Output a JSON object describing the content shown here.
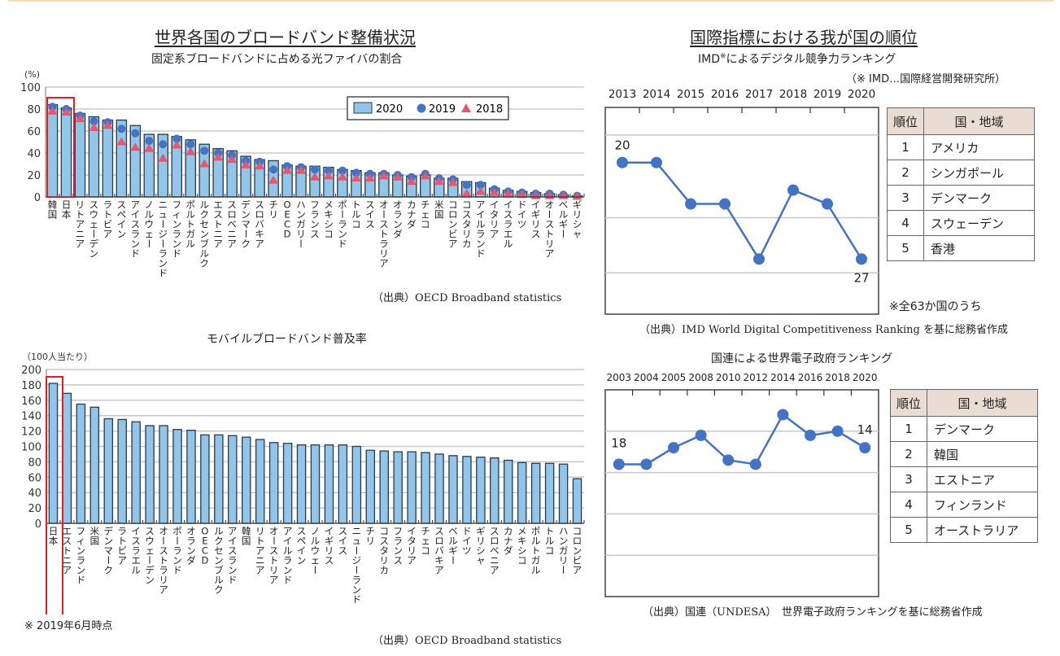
{
  "left": {
    "main_title": "世界各国のブロードバンド整備状況",
    "fiber": {
      "subtitle": "固定系ブロードバンドに占める光ファイバの割合",
      "unit": "(%)",
      "source": "（出典）OECD Broadband statistics"
    },
    "mobile": {
      "subtitle": "モバイルブロードバンド普及率",
      "unit": "（100人当たり）",
      "note": "※ 2019年6月時点",
      "source": "（出典）OECD Broadband statistics"
    }
  },
  "right": {
    "main_title": "国際指標における我が国の順位",
    "imd": {
      "subtitle": "IMD",
      "subtitle_mark": "※",
      "subtitle_rest": "によるデジタル競争力ランキング",
      "note_abbr": "（※ IMD…国際経営開発研究所）",
      "table_headers": [
        "順位",
        "国・地域"
      ],
      "table_rows": [
        {
          "rank": "1",
          "country": "アメリカ"
        },
        {
          "rank": "2",
          "country": "シンガポール"
        },
        {
          "rank": "3",
          "country": "デンマーク"
        },
        {
          "rank": "4",
          "country": "スウェーデン"
        },
        {
          "rank": "5",
          "country": "香港"
        }
      ],
      "footnote": "※全63か国のうち",
      "source": "（出典）IMD World Digital Competitiveness Ranking を基に総務省作成"
    },
    "un": {
      "subtitle": "国連による世界電子政府ランキング",
      "table_headers": [
        "順位",
        "国・地域"
      ],
      "table_rows": [
        {
          "rank": "1",
          "country": "デンマーク"
        },
        {
          "rank": "2",
          "country": "韓国"
        },
        {
          "rank": "3",
          "country": "エストニア"
        },
        {
          "rank": "4",
          "country": "フィンランド"
        },
        {
          "rank": "5",
          "country": "オーストラリア"
        }
      ],
      "source": "（出典）国連（UNDESA）　世界電子政府ランキングを基に総務省作成"
    }
  },
  "colors": {
    "bar": "#92c5ea",
    "bar_stroke": "#2a3a48",
    "series_2019": "#4472c4",
    "series_2018": "#e8566f",
    "highlight": "#e02020",
    "grid": "#c8c8c8",
    "table_header_bg": "#e8dcd3"
  },
  "chart_data": [
    {
      "id": "fiber",
      "type": "bar",
      "title": "固定系ブロードバンドに占める光ファイバの割合",
      "ylabel": "(%)",
      "ylim": [
        0,
        100
      ],
      "yticks": [
        0,
        20,
        40,
        60,
        80,
        100
      ],
      "grid": true,
      "legend": "top-right",
      "highlight": "日本",
      "categories": [
        "韓国",
        "日本",
        "リトアニア",
        "スウェーデン",
        "ラトビア",
        "スペイン",
        "アイスランド",
        "ノルウェー",
        "ニュージーランド",
        "フィンランド",
        "ポルトガル",
        "ルクセンブルク",
        "エストニア",
        "スロベニア",
        "デンマーク",
        "スロバキア",
        "チリ",
        "OECD",
        "ハンガリー",
        "フランス",
        "メキシコ",
        "ポーランド",
        "トルコ",
        "スイス",
        "オーストラリア",
        "オランダ",
        "カナダ",
        "チェコ",
        "米国",
        "コロンビア",
        "コスタリカ",
        "アイルランド",
        "イタリア",
        "イスラエル",
        "ドイツ",
        "イギリス",
        "オーストリア",
        "ベルギー",
        "ギリシャ"
      ],
      "series": [
        {
          "name": "2020",
          "kind": "bar",
          "values": [
            84,
            81,
            76,
            73,
            70,
            70,
            65,
            57,
            57,
            55,
            52,
            48,
            44,
            42,
            37,
            34,
            33,
            29,
            28,
            28,
            27,
            25,
            24,
            22,
            22,
            20,
            19,
            20,
            17,
            17,
            14,
            13,
            8,
            6,
            5,
            4,
            3,
            2,
            1
          ]
        },
        {
          "name": "2019",
          "kind": "dot",
          "values": [
            82,
            80,
            74,
            69,
            68,
            62,
            58,
            51,
            48,
            53,
            48,
            42,
            40,
            38,
            33,
            32,
            25,
            28,
            27,
            25,
            24,
            24,
            22,
            21,
            21,
            20,
            18,
            21,
            17,
            16,
            11,
            11,
            7,
            5,
            4,
            3,
            3,
            2,
            1
          ]
        },
        {
          "name": "2018",
          "kind": "triangle",
          "values": [
            78,
            77,
            71,
            63,
            65,
            50,
            45,
            44,
            35,
            47,
            41,
            30,
            36,
            34,
            29,
            28,
            15,
            24,
            24,
            18,
            19,
            18,
            17,
            17,
            19,
            18,
            14,
            19,
            14,
            13,
            3,
            5,
            4,
            3,
            2,
            1,
            1,
            1,
            0.5
          ]
        }
      ]
    },
    {
      "id": "mobile",
      "type": "bar",
      "title": "モバイルブロードバンド普及率",
      "ylabel": "（100人当たり）",
      "ylim": [
        0,
        200
      ],
      "yticks": [
        0,
        20,
        40,
        60,
        80,
        100,
        120,
        140,
        160,
        180,
        200
      ],
      "grid": true,
      "highlight": "日本",
      "categories": [
        "日本",
        "エストニア",
        "フィンランド",
        "米国",
        "デンマーク",
        "ラトビア",
        "イスラエル",
        "スウェーデン",
        "オーストラリア",
        "ポーランド",
        "オランダ",
        "OECD",
        "ルクセンブルク",
        "アイスランド",
        "韓国",
        "リトアニア",
        "オーストリア",
        "アイルランド",
        "スペイン",
        "ノルウェー",
        "イギリス",
        "スイス",
        "ニュージーランド",
        "チリ",
        "コスタリカ",
        "フランス",
        "イタリア",
        "チェコ",
        "スロバキア",
        "ベルギー",
        "ドイツ",
        "ギリシャ",
        "スロベニア",
        "カナダ",
        "メキシコ",
        "ポルトガル",
        "トルコ",
        "ハンガリー",
        "コロンビア"
      ],
      "series": [
        {
          "name": "2019",
          "values": [
            182,
            169,
            155,
            151,
            136,
            135,
            132,
            127,
            127,
            122,
            121,
            115,
            115,
            114,
            112,
            109,
            105,
            104,
            102,
            102,
            102,
            102,
            100,
            95,
            94,
            93,
            93,
            92,
            90,
            88,
            87,
            86,
            85,
            82,
            79,
            78,
            78,
            77,
            58
          ]
        }
      ]
    },
    {
      "id": "imd",
      "type": "line",
      "title": "IMDによるデジタル競争力ランキング",
      "x": [
        "2013",
        "2014",
        "2015",
        "2016",
        "2017",
        "2018",
        "2019",
        "2020"
      ],
      "values": [
        20,
        20,
        23,
        23,
        27,
        22,
        23,
        27
      ],
      "data_labels": [
        {
          "index": 0,
          "text": "20"
        },
        {
          "index": 7,
          "text": "27"
        }
      ],
      "ylim": [
        31,
        16
      ],
      "inverted": true,
      "grid": true
    },
    {
      "id": "un",
      "type": "line",
      "title": "国連による世界電子政府ランキング",
      "x": [
        "2003",
        "2004",
        "2005",
        "2008",
        "2010",
        "2012",
        "2014",
        "2016",
        "2018",
        "2020"
      ],
      "values": [
        18,
        18,
        14,
        11,
        17,
        18,
        6,
        11,
        10,
        14
      ],
      "data_labels": [
        {
          "index": 0,
          "text": "18"
        },
        {
          "index": 9,
          "text": "14"
        }
      ],
      "ylim": [
        50,
        0
      ],
      "inverted": true,
      "grid": true
    }
  ]
}
